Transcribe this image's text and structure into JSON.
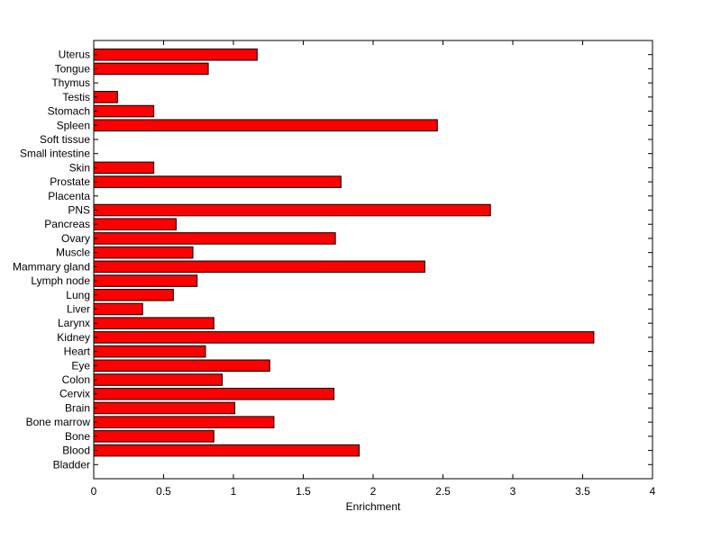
{
  "chart_data": {
    "type": "bar",
    "orientation": "horizontal",
    "xlabel": "Enrichment",
    "ylabel": "",
    "title": "",
    "xlim": [
      0,
      4
    ],
    "x_ticks": [
      "0",
      "0.5",
      "1",
      "1.5",
      "2",
      "2.5",
      "3",
      "3.5",
      "4"
    ],
    "grid": false,
    "bar_color": "#ff0000",
    "bar_edge_color": "#000000",
    "categories": [
      "Bladder",
      "Blood",
      "Bone",
      "Bone marrow",
      "Brain",
      "Cervix",
      "Colon",
      "Eye",
      "Heart",
      "Kidney",
      "Larynx",
      "Liver",
      "Lung",
      "Lymph node",
      "Mammary gland",
      "Muscle",
      "Ovary",
      "Pancreas",
      "PNS",
      "Placenta",
      "Prostate",
      "Skin",
      "Small intestine",
      "Soft tissue",
      "Spleen",
      "Stomach",
      "Testis",
      "Thymus",
      "Tongue",
      "Uterus"
    ],
    "values": [
      0,
      1.9,
      0.86,
      1.29,
      1.01,
      1.72,
      0.92,
      1.26,
      0.8,
      3.58,
      0.86,
      0.35,
      0.57,
      0.74,
      2.37,
      0.71,
      1.73,
      0.59,
      2.84,
      0,
      1.77,
      0.43,
      0,
      0,
      2.46,
      0.43,
      0.17,
      0,
      0.82,
      1.17
    ]
  }
}
